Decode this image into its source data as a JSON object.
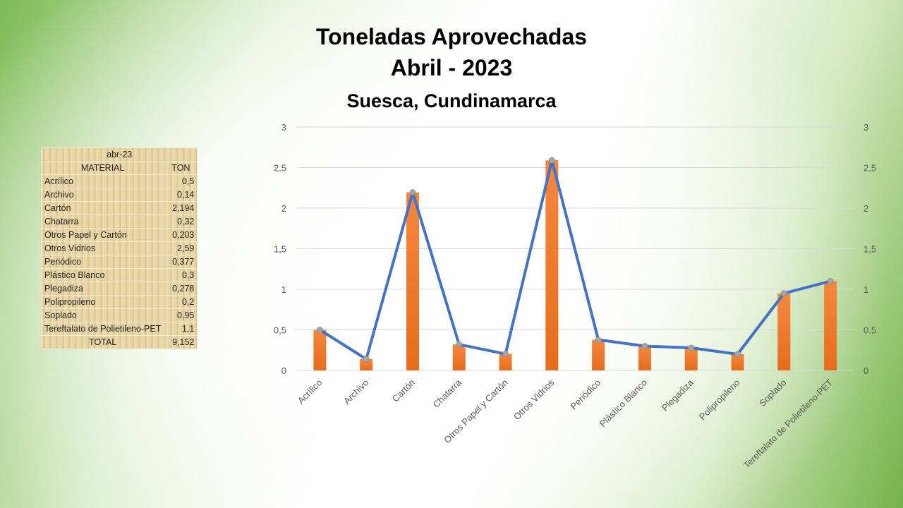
{
  "chart_data": {
    "type": "bar+line",
    "title": "Toneladas Aprovechadas",
    "subtitle": "Abril - 2023",
    "subtitle2": "Suesca, Cundinamarca",
    "categories": [
      "Acrílico",
      "Archivo",
      "Cartón",
      "Chatarra",
      "Otros Papel y Cartón",
      "Otros Vidrios",
      "Periódico",
      "Plástico Blanco",
      "Plegadiza",
      "Polipropileno",
      "Soplado",
      "Tereftalato de Polietileno-PET"
    ],
    "values": [
      0.5,
      0.14,
      2.194,
      0.32,
      0.203,
      2.59,
      0.377,
      0.3,
      0.278,
      0.2,
      0.95,
      1.1
    ],
    "ylim": [
      0,
      3
    ],
    "yticks": [
      "0",
      "0,5",
      "1",
      "1,5",
      "2",
      "2,5",
      "3"
    ],
    "grid": true,
    "colors": {
      "bar": "#ed7d31",
      "line": "#4472c4",
      "marker": "#a5a5a5"
    }
  },
  "table": {
    "period": "abr-23",
    "header": [
      "MATERIAL",
      "TON"
    ],
    "rows": [
      [
        "Acrílico",
        "0,5"
      ],
      [
        "Archivo",
        "0,14"
      ],
      [
        "Cartón",
        "2,194"
      ],
      [
        "Chatarra",
        "0,32"
      ],
      [
        "Otros Papel y Cartón",
        "0,203"
      ],
      [
        "Otros Vidrios",
        "2,59"
      ],
      [
        "Periódico",
        "0,377"
      ],
      [
        "Plástico Blanco",
        "0,3"
      ],
      [
        "Plegadiza",
        "0,278"
      ],
      [
        "Polipropileno",
        "0,2"
      ],
      [
        "Soplado",
        "0,95"
      ],
      [
        "Tereftalato de Polietileno-PET",
        "1,1"
      ]
    ],
    "total_label": "TOTAL",
    "total": "9,152"
  }
}
